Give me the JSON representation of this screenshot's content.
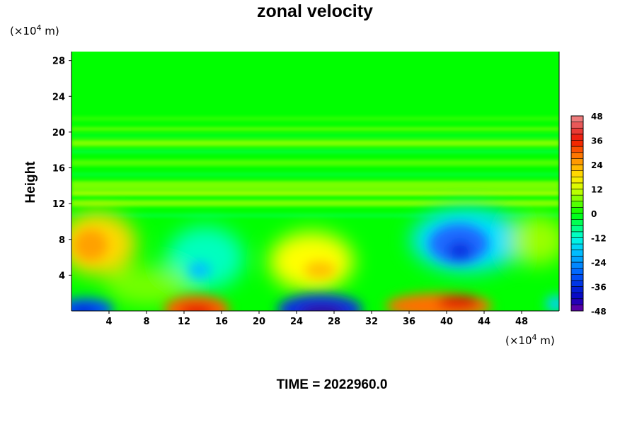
{
  "chart_data": {
    "type": "heatmap",
    "title": "zonal velocity",
    "ylabel": "Height",
    "y_unit_prefix": "(×10",
    "y_unit_exp": "4",
    "y_unit_suffix": " m)",
    "x_unit_prefix": "(×10",
    "x_unit_exp": "4",
    "x_unit_suffix": " m)",
    "xlim": [
      0,
      52
    ],
    "ylim": [
      0,
      29
    ],
    "x_ticks": [
      "4",
      "8",
      "12",
      "16",
      "20",
      "24",
      "28",
      "32",
      "36",
      "40",
      "44",
      "48"
    ],
    "y_ticks": [
      "4",
      "8",
      "12",
      "16",
      "20",
      "24",
      "28"
    ],
    "colorbar": {
      "range": [
        -48,
        48
      ],
      "levels": [
        -48,
        -45,
        -42,
        -39,
        -36,
        -33,
        -30,
        -27,
        -24,
        -21,
        -18,
        -15,
        -12,
        -9,
        -6,
        -3,
        0,
        3,
        6,
        9,
        12,
        15,
        18,
        21,
        24,
        27,
        30,
        33,
        36,
        39,
        42,
        45,
        48
      ],
      "tick_labels": [
        "48",
        "36",
        "24",
        "12",
        "0",
        "-12",
        "-24",
        "-36",
        "-48"
      ]
    },
    "features": [
      {
        "x": 3.5,
        "y": 7.7,
        "value": 24
      },
      {
        "x": 13.0,
        "y": 0.5,
        "value": 38
      },
      {
        "x": 26.5,
        "y": 0.5,
        "value": -40
      },
      {
        "x": 40.5,
        "y": 1.0,
        "value": 38
      },
      {
        "x": 41.0,
        "y": 6.8,
        "value": -27
      },
      {
        "x": 1.5,
        "y": 0.2,
        "value": -30
      },
      {
        "x": 26.0,
        "y": 4.5,
        "value": 17
      },
      {
        "x": 13.5,
        "y": 4.8,
        "value": -18
      }
    ]
  },
  "footer": {
    "time_text": "TIME = 2022960.0"
  },
  "colors": {
    "background": "#00ff00",
    "axis": "#000000"
  }
}
